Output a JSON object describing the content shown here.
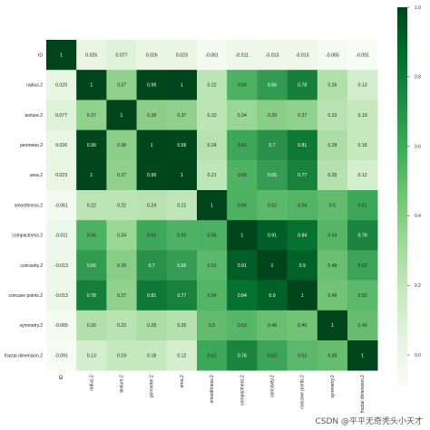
{
  "chart_data": {
    "type": "heatmap",
    "labels": [
      "ID",
      "radius.2",
      "texture.2",
      "perimeter.2",
      "area.2",
      "smoothness.2",
      "compactness.2",
      "concavity.2",
      "concave points.2",
      "symmetry.2",
      "fractal dimension.2"
    ],
    "matrix": [
      [
        "1",
        "0.025",
        "0.077",
        "0.026",
        "0.023",
        "-0.061",
        "-0.011",
        "-0.013",
        "-0.013",
        "-0.065",
        "-0.091"
      ],
      [
        "0.025",
        "1",
        "0.37",
        "0.99",
        "1",
        "0.22",
        "0.56",
        "0.66",
        "0.78",
        "0.26",
        "0.13"
      ],
      [
        "0.077",
        "0.37",
        "1",
        "0.38",
        "0.37",
        "0.22",
        "0.34",
        "0.39",
        "0.37",
        "0.23",
        "0.19"
      ],
      [
        "0.026",
        "0.99",
        "0.38",
        "1",
        "0.99",
        "0.24",
        "0.61",
        "0.7",
        "0.81",
        "0.28",
        "0.18"
      ],
      [
        "0.023",
        "1",
        "0.37",
        "0.99",
        "1",
        "0.21",
        "0.55",
        "0.65",
        "0.77",
        "0.25",
        "0.12"
      ],
      [
        "-0.061",
        "0.22",
        "0.22",
        "0.24",
        "0.21",
        "1",
        "0.56",
        "0.52",
        "0.54",
        "0.5",
        "0.61"
      ],
      [
        "-0.011",
        "0.56",
        "0.34",
        "0.61",
        "0.55",
        "0.56",
        "1",
        "0.91",
        "0.84",
        "0.53",
        "0.76"
      ],
      [
        "-0.013",
        "0.66",
        "0.39",
        "0.7",
        "0.65",
        "0.52",
        "0.91",
        "1",
        "0.9",
        "0.48",
        "0.62"
      ],
      [
        "-0.013",
        "0.78",
        "0.37",
        "0.81",
        "0.77",
        "0.54",
        "0.84",
        "0.9",
        "1",
        "0.46",
        "0.52"
      ],
      [
        "-0.065",
        "0.26",
        "0.23",
        "0.28",
        "0.25",
        "0.5",
        "0.53",
        "0.48",
        "0.46",
        "1",
        "0.49"
      ],
      [
        "-0.091",
        "0.13",
        "0.19",
        "0.18",
        "0.12",
        "0.61",
        "0.76",
        "0.62",
        "0.52",
        "0.49",
        "1"
      ]
    ],
    "colorbar": {
      "ticks": [
        "0.0",
        "0.2",
        "0.4",
        "0.6",
        "0.8",
        "1.0"
      ],
      "range": [
        -0.091,
        1
      ],
      "colormap": "Greens",
      "colors": [
        "#f7fcf5",
        "#e5f5e0",
        "#c7e9c0",
        "#a1d99b",
        "#74c476",
        "#41ab5d",
        "#238b45",
        "#006d2c",
        "#00441b"
      ]
    }
  },
  "watermark": "CSDN @平平无奇秃头小天才"
}
